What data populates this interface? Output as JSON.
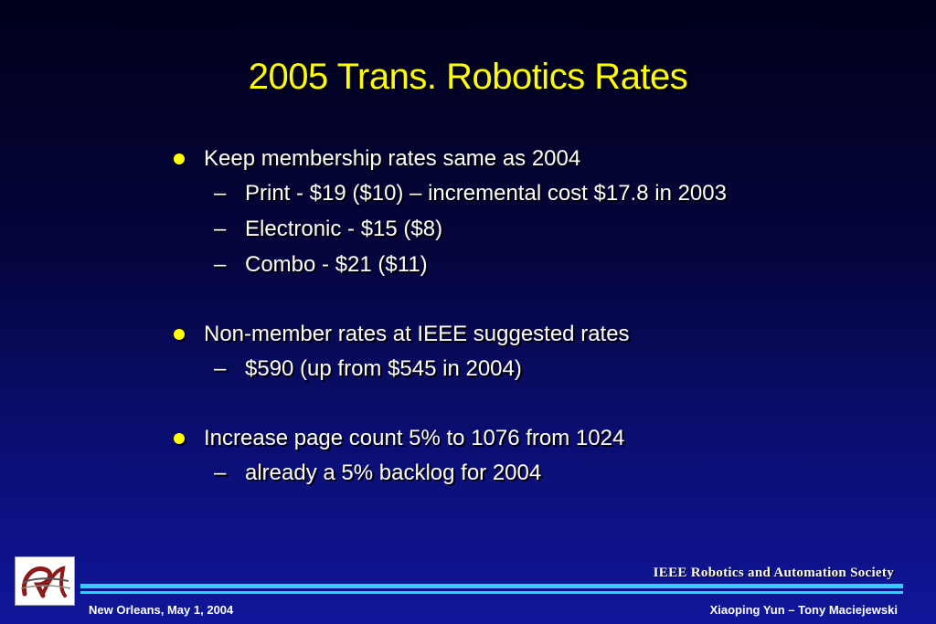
{
  "slide": {
    "title": "2005 Trans. Robotics Rates",
    "bullets": [
      {
        "text": "Keep membership rates same as 2004",
        "subs": [
          "Print  - $19 ($10) – incremental cost $17.8 in 2003",
          "Electronic - $15 ($8)",
          "Combo - $21 ($11)"
        ]
      },
      {
        "text": "Non-member rates at IEEE suggested rates",
        "subs": [
          "$590 (up from $545 in 2004)"
        ]
      },
      {
        "text": "Increase page count 5% to 1076 from 1024",
        "subs": [
          "already a 5% backlog for 2004"
        ]
      }
    ],
    "dash": "–"
  },
  "footer": {
    "society": "IEEE Robotics and Automation Society",
    "left": "New Orleans, May 1, 2004",
    "right": "Xiaoping Yun – Tony Maciejewski"
  },
  "colors": {
    "title": "#ffff00",
    "bullet_dot": "#ffff00",
    "rule": "#33ccff"
  },
  "logo": {
    "icon": "ra-society-logo-icon"
  }
}
